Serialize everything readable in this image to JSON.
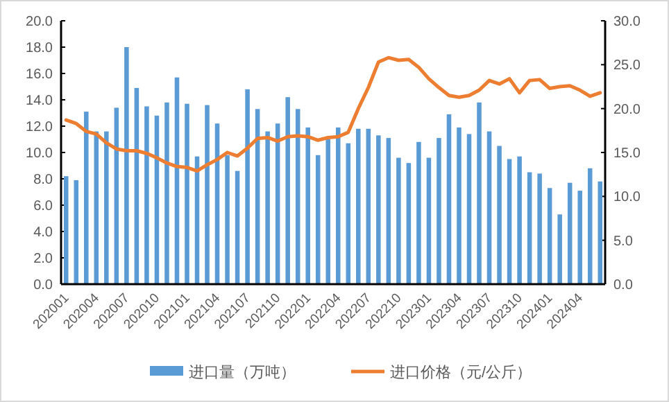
{
  "chart_data": {
    "type": "bar",
    "categories": [
      "202001",
      null,
      null,
      "202004",
      null,
      null,
      "202007",
      null,
      null,
      "202010",
      null,
      null,
      "202101",
      null,
      null,
      "202104",
      null,
      null,
      "202107",
      null,
      null,
      "202110",
      null,
      null,
      "202201",
      null,
      null,
      "202204",
      null,
      null,
      "202207",
      null,
      null,
      "202210",
      null,
      null,
      "202301",
      null,
      null,
      "202304",
      null,
      null,
      "202307",
      null,
      null,
      "202310",
      null,
      null,
      "202401",
      null,
      null,
      "202404",
      null,
      null
    ],
    "series": [
      {
        "name": "进口量（万吨）",
        "color": "#5b9bd5",
        "values": [
          8.2,
          7.9,
          13.1,
          11.6,
          11.6,
          13.4,
          18.0,
          14.9,
          13.5,
          12.8,
          13.8,
          15.7,
          13.7,
          9.7,
          13.6,
          12.2,
          9.8,
          8.6,
          14.8,
          13.3,
          11.6,
          12.2,
          14.2,
          13.3,
          11.9,
          9.8,
          11.0,
          11.9,
          10.7,
          11.8,
          11.8,
          11.3,
          11.1,
          9.6,
          9.2,
          10.8,
          9.6,
          11.1,
          12.9,
          11.9,
          11.4,
          13.8,
          11.6,
          10.5,
          9.5,
          9.7,
          8.5,
          8.4,
          7.3,
          5.3,
          7.7,
          7.1,
          8.8,
          7.8
        ]
      },
      {
        "name": "进口价格（元/公斤）",
        "type": "line",
        "axis": "y2",
        "color": "#ed7d31",
        "values": [
          18.7,
          18.3,
          17.4,
          17.1,
          16.1,
          15.4,
          15.2,
          15.2,
          14.9,
          14.4,
          13.8,
          13.4,
          13.3,
          12.9,
          13.6,
          14.2,
          15.0,
          14.6,
          15.5,
          16.6,
          16.7,
          16.3,
          16.8,
          16.9,
          16.8,
          16.4,
          16.7,
          16.8,
          17.3,
          20.0,
          22.4,
          25.3,
          25.8,
          25.5,
          25.6,
          24.7,
          23.4,
          22.4,
          21.5,
          21.3,
          21.5,
          22.1,
          23.2,
          22.8,
          23.4,
          21.8,
          23.2,
          23.3,
          22.3,
          22.5,
          22.6,
          22.1,
          21.4,
          21.8
        ]
      }
    ],
    "ylim": [
      0,
      20
    ],
    "yticks": [
      {
        "value": 0,
        "label": "0.0"
      },
      {
        "value": 2,
        "label": "2.0"
      },
      {
        "value": 4,
        "label": "4.0"
      },
      {
        "value": 6,
        "label": "6.0"
      },
      {
        "value": 8,
        "label": "8.0"
      },
      {
        "value": 10,
        "label": "10.0"
      },
      {
        "value": 12,
        "label": "12.0"
      },
      {
        "value": 14,
        "label": "14.0"
      },
      {
        "value": 16,
        "label": "16.0"
      },
      {
        "value": 18,
        "label": "18.0"
      },
      {
        "value": 20,
        "label": "20.0"
      }
    ],
    "y2lim": [
      0,
      30
    ],
    "y2ticks": [
      {
        "value": 0,
        "label": "0.0"
      },
      {
        "value": 5,
        "label": "5.0"
      },
      {
        "value": 10,
        "label": "10.0"
      },
      {
        "value": 15,
        "label": "15.0"
      },
      {
        "value": 20,
        "label": "20.0"
      },
      {
        "value": 25,
        "label": "25.0"
      },
      {
        "value": 30,
        "label": "30.0"
      }
    ],
    "grid": false,
    "legend": "bottom"
  }
}
